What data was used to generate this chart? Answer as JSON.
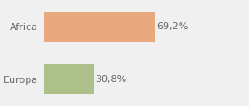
{
  "categories": [
    "Africa",
    "Europa"
  ],
  "values": [
    69.2,
    30.8
  ],
  "bar_colors": [
    "#e8a97e",
    "#adc08a"
  ],
  "label_texts": [
    "69,2%",
    "30,8%"
  ],
  "background_color": "#f0f0f0",
  "xlim": [
    0,
    100
  ],
  "bar_height": 0.55,
  "label_fontsize": 8,
  "tick_fontsize": 8,
  "grid_color": "#ffffff",
  "text_color": "#666666"
}
